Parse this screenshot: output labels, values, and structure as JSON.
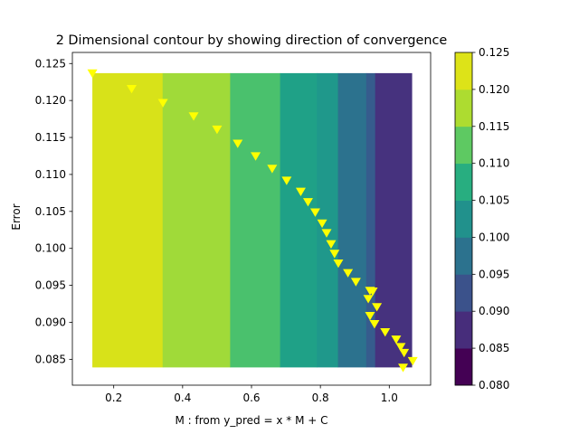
{
  "chart_data": {
    "type": "contour",
    "title": "2 Dimensional contour by showing direction of convergence",
    "xlabel": "M : from y_pred = x * M + C",
    "ylabel": "Error",
    "xlim": [
      0.08,
      1.12
    ],
    "ylim": [
      0.0815,
      0.1265
    ],
    "x_ticks": [
      0.2,
      0.4,
      0.6,
      0.8,
      1.0
    ],
    "y_ticks": [
      0.085,
      0.09,
      0.095,
      0.1,
      0.105,
      0.11,
      0.115,
      0.12,
      0.125
    ],
    "contour_extent": {
      "x": [
        0.138,
        1.065
      ],
      "y": [
        0.0839,
        0.1237
      ]
    },
    "bands": [
      {
        "x_from": 0.138,
        "x_to": 0.342,
        "level": [
          0.12,
          0.125
        ],
        "color": "#d8e219"
      },
      {
        "x_from": 0.342,
        "x_to": 0.538,
        "level": [
          0.115,
          0.12
        ],
        "color": "#a0da39"
      },
      {
        "x_from": 0.538,
        "x_to": 0.683,
        "level": [
          0.11,
          0.115
        ],
        "color": "#4ac16d"
      },
      {
        "x_from": 0.683,
        "x_to": 0.79,
        "level": [
          0.105,
          0.11
        ],
        "color": "#1fa187"
      },
      {
        "x_from": 0.79,
        "x_to": 0.851,
        "level": [
          0.1,
          0.105
        ],
        "color": "#1f988b"
      },
      {
        "x_from": 0.851,
        "x_to": 0.933,
        "level": [
          0.095,
          0.1
        ],
        "color": "#2c728e"
      },
      {
        "x_from": 0.933,
        "x_to": 0.959,
        "level": [
          0.09,
          0.095
        ],
        "color": "#365c8d"
      },
      {
        "x_from": 0.959,
        "x_to": 1.065,
        "level": [
          0.085,
          0.09
        ],
        "color": "#46327e"
      }
    ],
    "points": {
      "marker": "triangle-down",
      "color": "#ffff00",
      "x": [
        0.138,
        0.252,
        0.343,
        0.432,
        0.5,
        0.56,
        0.612,
        0.66,
        0.702,
        0.743,
        0.764,
        0.785,
        0.805,
        0.818,
        0.831,
        0.841,
        0.852,
        0.88,
        0.903,
        0.944,
        0.952,
        0.939,
        0.944,
        0.964,
        0.957,
        0.988,
        1.02,
        1.033,
        1.043,
        1.068,
        1.04
      ],
      "y": [
        0.1237,
        0.1216,
        0.1197,
        0.1179,
        0.1161,
        0.1142,
        0.1125,
        0.1108,
        0.1092,
        0.1077,
        0.1063,
        0.1049,
        0.1034,
        0.1021,
        0.1006,
        0.0993,
        0.098,
        0.0967,
        0.0955,
        0.0943,
        0.0942,
        0.0932,
        0.0909,
        0.0921,
        0.0898,
        0.0887,
        0.0877,
        0.0867,
        0.0859,
        0.0848,
        0.0839
      ]
    },
    "colorbar": {
      "levels": [
        0.08,
        0.085,
        0.09,
        0.095,
        0.1,
        0.105,
        0.11,
        0.115,
        0.12,
        0.125
      ],
      "tick_labels": [
        "0.080",
        "0.085",
        "0.090",
        "0.095",
        "0.100",
        "0.105",
        "0.110",
        "0.115",
        "0.120",
        "0.125"
      ],
      "colors": [
        "#440154",
        "#472d7b",
        "#3b528b",
        "#2c728e",
        "#21918c",
        "#28ae80",
        "#5ec962",
        "#addc30",
        "#dde318"
      ]
    },
    "grid": false,
    "legend": "none"
  }
}
